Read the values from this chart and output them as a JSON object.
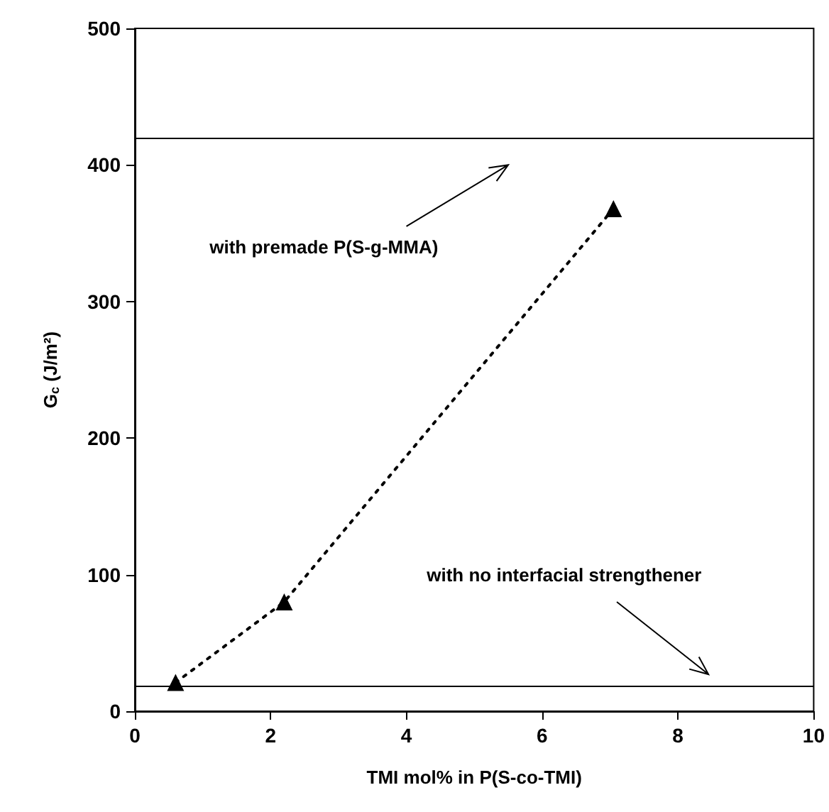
{
  "chart_data": {
    "type": "line",
    "xlabel": "TMI mol% in P(S-co-TMI)",
    "ylabel": "G$_{c}$ (J/m²)",
    "x": [
      0.6,
      2.2,
      7.05
    ],
    "series": [
      {
        "color": "#000000",
        "values": [
          21,
          80,
          368
        ]
      }
    ],
    "xlim": [
      0,
      10
    ],
    "xticks": [
      0,
      2,
      4,
      6,
      8,
      10
    ],
    "ylim": [
      0,
      500
    ],
    "yticks": [
      0,
      100,
      200,
      300,
      400,
      500
    ],
    "ref_lines": [
      {
        "axis": "y",
        "value": 420,
        "color": "#000000",
        "line_style": "solid"
      },
      {
        "axis": "y",
        "value": 18,
        "color": "#000000",
        "line_style": "solid"
      }
    ],
    "annotations": [
      "with premade P(S-g-MMA)",
      "with no interfacial strengthener"
    ],
    "grid": false,
    "marker": "triangle",
    "line_style": "dotted"
  }
}
